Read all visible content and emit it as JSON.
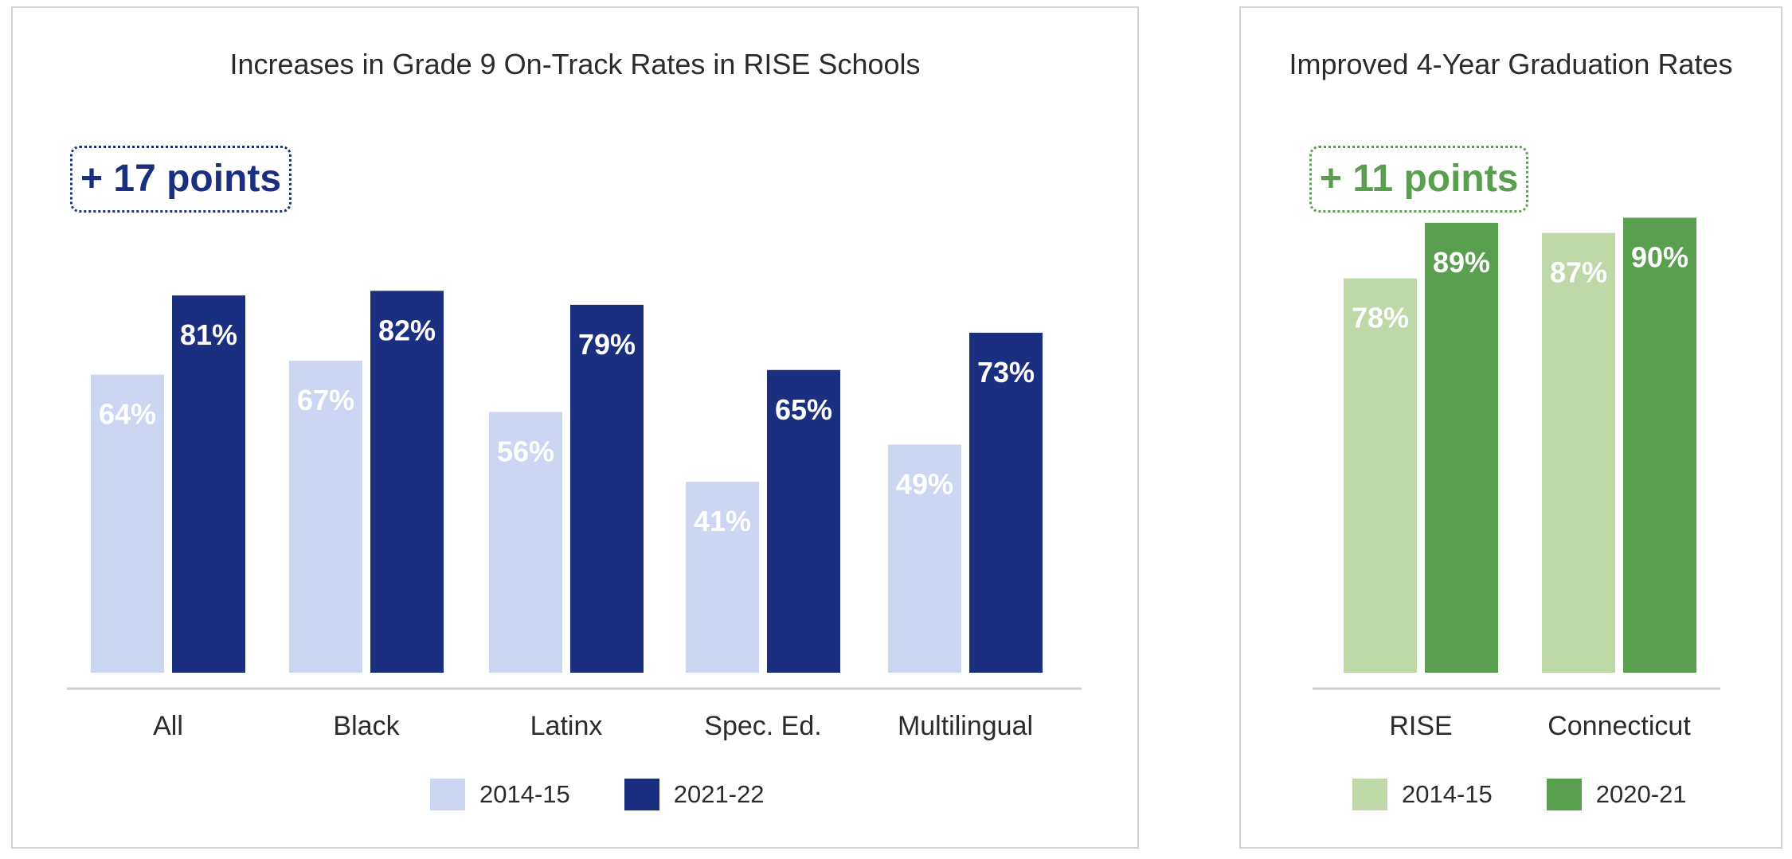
{
  "chart_data": [
    {
      "type": "bar",
      "title": "Increases in Grade 9 On-Track Rates in RISE Schools",
      "callout": "+ 17 points",
      "categories": [
        "All",
        "Black",
        "Latinx",
        "Spec. Ed.",
        "Multilingual"
      ],
      "series": [
        {
          "name": "2014-15",
          "values": [
            64,
            67,
            56,
            41,
            49
          ],
          "labels": [
            "64%",
            "67%",
            "56%",
            "41%",
            "49%"
          ],
          "color": "#ccd5f1"
        },
        {
          "name": "2021-22",
          "values": [
            81,
            82,
            79,
            65,
            73
          ],
          "labels": [
            "81%",
            "82%",
            "79%",
            "65%",
            "73%"
          ],
          "color": "#1b2f80"
        }
      ],
      "ylim": [
        0,
        100
      ],
      "grid": false,
      "legend_position": "bottom",
      "accent_color": "#1b2f80"
    },
    {
      "type": "bar",
      "title": "Improved 4-Year Graduation Rates",
      "callout": "+ 11 points",
      "categories": [
        "RISE",
        "Connecticut"
      ],
      "series": [
        {
          "name": "2014-15",
          "values": [
            78,
            87
          ],
          "labels": [
            "78%",
            "87%"
          ],
          "color": "#bfd8a8"
        },
        {
          "name": "2020-21",
          "values": [
            89,
            90
          ],
          "labels": [
            "89%",
            "90%"
          ],
          "color": "#5a9e4f"
        }
      ],
      "ylim": [
        0,
        100
      ],
      "grid": false,
      "legend_position": "bottom",
      "accent_color": "#5a9e4f"
    }
  ]
}
